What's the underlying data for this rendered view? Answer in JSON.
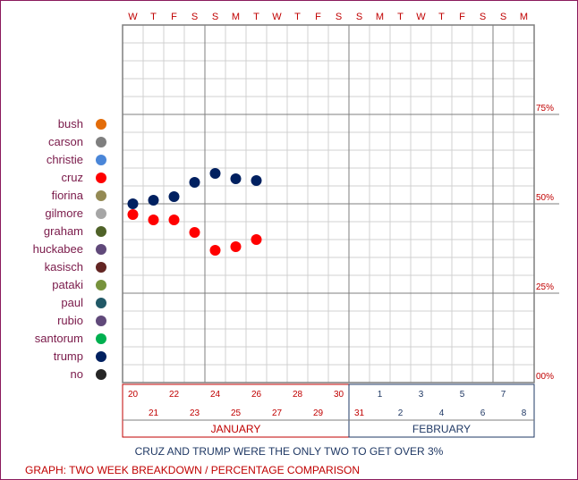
{
  "chart_data": {
    "type": "scatter",
    "title": "",
    "days": [
      "W",
      "T",
      "F",
      "S",
      "S",
      "M",
      "T",
      "W",
      "T",
      "F",
      "S",
      "S",
      "M",
      "T",
      "W",
      "T",
      "F",
      "S",
      "S",
      "M"
    ],
    "y_ticks": [
      {
        "value": 75,
        "label": "75%"
      },
      {
        "value": 50,
        "label": "50%"
      },
      {
        "value": 25,
        "label": "25%"
      },
      {
        "value": 0,
        "label": "00%"
      }
    ],
    "ylim": [
      0,
      100
    ],
    "jan_dates_top": [
      "20",
      "22",
      "24",
      "26",
      "28",
      "30"
    ],
    "jan_dates_bottom": [
      "21",
      "23",
      "25",
      "27",
      "29",
      "31"
    ],
    "feb_dates_top": [
      "1",
      "3",
      "5",
      "7"
    ],
    "feb_dates_bottom": [
      "2",
      "4",
      "6",
      "8"
    ],
    "months": [
      {
        "name": "JANUARY",
        "color": "#c00000"
      },
      {
        "name": "FEBRUARY",
        "color": "#1f3864"
      }
    ],
    "series": [
      {
        "name": "cruz",
        "color": "#ff0000",
        "points": [
          {
            "x": 0,
            "y": 47
          },
          {
            "x": 1,
            "y": 45.5
          },
          {
            "x": 2,
            "y": 45.5
          },
          {
            "x": 3,
            "y": 42
          },
          {
            "x": 4,
            "y": 37
          },
          {
            "x": 5,
            "y": 38
          },
          {
            "x": 6,
            "y": 40
          }
        ]
      },
      {
        "name": "trump",
        "color": "#002060",
        "points": [
          {
            "x": 0,
            "y": 50
          },
          {
            "x": 1,
            "y": 51
          },
          {
            "x": 2,
            "y": 52
          },
          {
            "x": 3,
            "y": 56
          },
          {
            "x": 4,
            "y": 58.5
          },
          {
            "x": 5,
            "y": 57
          },
          {
            "x": 6,
            "y": 56.5
          }
        ]
      }
    ]
  },
  "legend": [
    {
      "name": "bush",
      "color": "#e36c09"
    },
    {
      "name": "carson",
      "color": "#7f7f7f"
    },
    {
      "name": "christie",
      "color": "#4a86d8"
    },
    {
      "name": "cruz",
      "color": "#ff0000"
    },
    {
      "name": "fiorina",
      "color": "#948a54"
    },
    {
      "name": "gilmore",
      "color": "#a6a6a6"
    },
    {
      "name": "graham",
      "color": "#4f6228"
    },
    {
      "name": "huckabee",
      "color": "#60497a"
    },
    {
      "name": "kasisch",
      "color": "#632523"
    },
    {
      "name": "pataki",
      "color": "#77933c"
    },
    {
      "name": "paul",
      "color": "#215967"
    },
    {
      "name": "rubio",
      "color": "#60497a"
    },
    {
      "name": "santorum",
      "color": "#00b050"
    },
    {
      "name": "trump",
      "color": "#002060"
    },
    {
      "name": "no",
      "color": "#262626"
    }
  ],
  "caption": "CRUZ AND TRUMP WERE THE ONLY TWO TO GET OVER 3%",
  "footer": "GRAPH: TWO WEEK BREAKDOWN / PERCENTAGE COMPARISON"
}
